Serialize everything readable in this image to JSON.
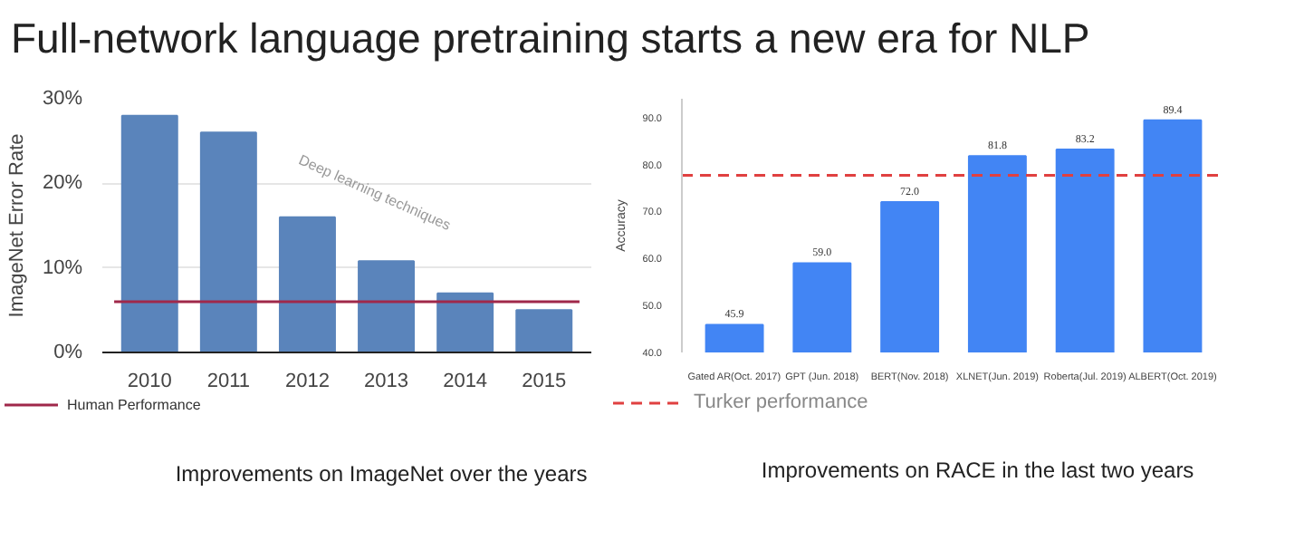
{
  "chart_data": [
    {
      "type": "bar",
      "title": "Full-network language pretraining starts a new era for NLP",
      "ylabel": "ImageNet Error Rate",
      "categories": [
        "2010",
        "2011",
        "2012",
        "2013",
        "2014",
        "2015"
      ],
      "values": [
        28,
        26,
        16,
        10.8,
        7,
        5
      ],
      "color": "#5a84bb",
      "ylim": [
        0,
        30
      ],
      "yticks": [
        {
          "value": 0,
          "label": "0%"
        },
        {
          "value": 10,
          "label": "10%"
        },
        {
          "value": 20,
          "label": "20%"
        },
        {
          "value": 30,
          "label": "30%"
        }
      ],
      "grid": "y",
      "legend": "bottom",
      "ref_lines": [
        {
          "axis": "y",
          "value": 6,
          "label": "Human Performance",
          "color": "#a0284a",
          "line_style": "solid"
        }
      ],
      "annotations": [
        "Deep learning techniques",
        "Improvements on ImageNet over the years"
      ]
    },
    {
      "type": "bar",
      "ylabel": "Accuracy",
      "categories": [
        "Gated AR(Oct. 2017)",
        "GPT (Jun. 2018)",
        "BERT(Nov. 2018)",
        "XLNET(Jun. 2019)",
        "Roberta(Jul. 2019)",
        "ALBERT(Oct. 2019)"
      ],
      "values": [
        45.9,
        59.0,
        72.0,
        81.8,
        83.2,
        89.4
      ],
      "value_labels": [
        "45.9",
        "59.0",
        "72.0",
        "81.8",
        "83.2",
        "89.4"
      ],
      "color": "#4285f4",
      "ylim": [
        40,
        94
      ],
      "yticks": [
        {
          "value": 40,
          "label": "40.0"
        },
        {
          "value": 50,
          "label": "50.0"
        },
        {
          "value": 60,
          "label": "60.0"
        },
        {
          "value": 70,
          "label": "70.0"
        },
        {
          "value": 80,
          "label": "80.0"
        },
        {
          "value": 90,
          "label": "90.0"
        }
      ],
      "legend": "bottom",
      "ref_lines": [
        {
          "axis": "y",
          "value": 77.7,
          "label": "Turker performance",
          "color": "#e04040",
          "line_style": "dashed"
        }
      ],
      "annotations": [
        "Improvements on RACE in the last two years"
      ]
    }
  ]
}
